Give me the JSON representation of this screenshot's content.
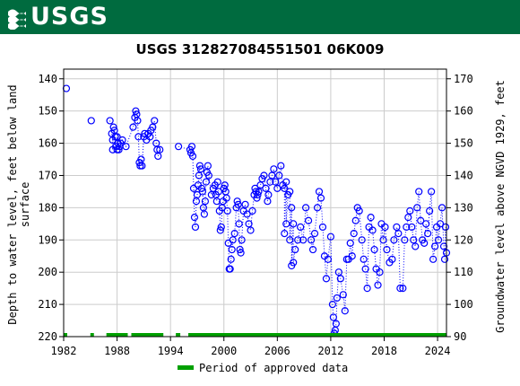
{
  "header": {
    "logo_text": "USGS",
    "logo_icon": "usgs-wave-icon",
    "banner_color": "#006b3f"
  },
  "chart_data": {
    "type": "scatter",
    "title": "USGS 312827084551501 06K009",
    "ylabel_left": "Depth to water level, feet below land surface",
    "ylabel_right": "Groundwater level above NGVD 1929, feet",
    "xlim": [
      1982,
      2025
    ],
    "ylim_left": [
      220,
      137
    ],
    "ylim_right": [
      90,
      173
    ],
    "x_ticks": [
      1982,
      1988,
      1994,
      2000,
      2006,
      2012,
      2018,
      2024
    ],
    "y_ticks_left": [
      140,
      150,
      160,
      170,
      180,
      190,
      200,
      210,
      220
    ],
    "y_ticks_right": [
      90,
      100,
      110,
      120,
      130,
      140,
      150,
      160,
      170
    ],
    "grid": true,
    "marker_color": "#0000ff",
    "approved_color": "#00a000",
    "legend": {
      "label": "Period of approved data",
      "placement": "bottom-center"
    },
    "approved_periods": [
      [
        1982.0,
        1982.4
      ],
      [
        1985.0,
        1985.4
      ],
      [
        1986.8,
        1989.2
      ],
      [
        1989.6,
        1993.2
      ],
      [
        1994.6,
        1995.1
      ],
      [
        1996.0,
        2025.0
      ]
    ],
    "series": [
      {
        "points": [
          [
            1982.3,
            143
          ],
          [
            1985.1,
            153
          ],
          [
            1987.2,
            153
          ],
          [
            1987.4,
            157
          ],
          [
            1987.5,
            159
          ],
          [
            1987.6,
            155
          ],
          [
            1987.7,
            156
          ],
          [
            1987.8,
            158
          ],
          [
            1987.9,
            161
          ],
          [
            1988.0,
            162
          ],
          [
            1988.1,
            160
          ],
          [
            1988.2,
            162
          ],
          [
            1988.3,
            161
          ],
          [
            1987.5,
            162
          ],
          [
            1988.0,
            158
          ],
          [
            1988.4,
            160
          ],
          [
            1988.6,
            159
          ],
          [
            1989.0,
            161
          ],
          [
            1989.8,
            155
          ],
          [
            1990.0,
            152
          ],
          [
            1990.1,
            150
          ],
          [
            1990.2,
            151
          ],
          [
            1990.3,
            153
          ],
          [
            1990.4,
            158
          ],
          [
            1990.5,
            166
          ],
          [
            1990.6,
            167
          ],
          [
            1990.7,
            165
          ],
          [
            1990.8,
            167
          ],
          [
            1991.0,
            158
          ],
          [
            1991.1,
            157
          ],
          [
            1991.3,
            159
          ],
          [
            1991.5,
            157
          ],
          [
            1991.7,
            158
          ],
          [
            1991.8,
            156
          ],
          [
            1992.0,
            155
          ],
          [
            1992.2,
            153
          ],
          [
            1992.4,
            160
          ],
          [
            1992.5,
            162
          ],
          [
            1992.6,
            164
          ],
          [
            1992.8,
            162
          ],
          [
            1994.9,
            161
          ],
          [
            1996.2,
            162
          ],
          [
            1996.3,
            163
          ],
          [
            1996.4,
            161
          ],
          [
            1996.5,
            164
          ],
          [
            1996.6,
            174
          ],
          [
            1996.7,
            183
          ],
          [
            1996.8,
            186
          ],
          [
            1996.9,
            178
          ],
          [
            1997.0,
            176
          ],
          [
            1997.1,
            173
          ],
          [
            1997.2,
            170
          ],
          [
            1997.3,
            167
          ],
          [
            1997.4,
            168
          ],
          [
            1997.5,
            174
          ],
          [
            1997.6,
            175
          ],
          [
            1997.7,
            180
          ],
          [
            1997.8,
            182
          ],
          [
            1997.9,
            178
          ],
          [
            1998.0,
            172
          ],
          [
            1998.1,
            169
          ],
          [
            1998.2,
            167
          ],
          [
            1998.3,
            170
          ],
          [
            1998.6,
            176
          ],
          [
            1998.8,
            174
          ],
          [
            1999.0,
            173
          ],
          [
            1999.1,
            176
          ],
          [
            1999.2,
            178
          ],
          [
            1999.3,
            172
          ],
          [
            1999.4,
            175
          ],
          [
            1999.5,
            181
          ],
          [
            1999.6,
            187
          ],
          [
            1999.7,
            186
          ],
          [
            1999.8,
            180
          ],
          [
            1999.9,
            178
          ],
          [
            2000.0,
            174
          ],
          [
            2000.1,
            173
          ],
          [
            2000.2,
            175
          ],
          [
            2000.3,
            177
          ],
          [
            2000.4,
            181
          ],
          [
            2000.5,
            191
          ],
          [
            2000.6,
            199
          ],
          [
            2000.7,
            199
          ],
          [
            2000.8,
            196
          ],
          [
            2000.9,
            193
          ],
          [
            2001.0,
            190
          ],
          [
            2001.2,
            188
          ],
          [
            2001.4,
            180
          ],
          [
            2001.5,
            178
          ],
          [
            2001.6,
            179
          ],
          [
            2001.7,
            185
          ],
          [
            2001.8,
            193
          ],
          [
            2001.9,
            194
          ],
          [
            2002.0,
            190
          ],
          [
            2002.2,
            181
          ],
          [
            2002.4,
            179
          ],
          [
            2002.6,
            182
          ],
          [
            2002.8,
            185
          ],
          [
            2003.0,
            187
          ],
          [
            2003.2,
            181
          ],
          [
            2003.4,
            176
          ],
          [
            2003.5,
            174
          ],
          [
            2003.6,
            175
          ],
          [
            2003.7,
            177
          ],
          [
            2003.8,
            176
          ],
          [
            2003.9,
            175
          ],
          [
            2004.1,
            173
          ],
          [
            2004.3,
            171
          ],
          [
            2004.5,
            170
          ],
          [
            2004.7,
            174
          ],
          [
            2004.9,
            178
          ],
          [
            2005.0,
            176
          ],
          [
            2005.2,
            172
          ],
          [
            2005.4,
            170
          ],
          [
            2005.6,
            168
          ],
          [
            2005.8,
            172
          ],
          [
            2006.0,
            174
          ],
          [
            2006.2,
            170
          ],
          [
            2006.4,
            167
          ],
          [
            2006.6,
            173
          ],
          [
            2006.8,
            174
          ],
          [
            2007.0,
            172
          ],
          [
            2007.2,
            176
          ],
          [
            2007.4,
            175
          ],
          [
            2007.6,
            180
          ],
          [
            2007.8,
            185
          ],
          [
            2006.8,
            188
          ],
          [
            2007.0,
            185
          ],
          [
            2007.4,
            190
          ],
          [
            2007.6,
            198
          ],
          [
            2007.8,
            197
          ],
          [
            2008.0,
            193
          ],
          [
            2008.3,
            190
          ],
          [
            2008.6,
            186
          ],
          [
            2008.9,
            190
          ],
          [
            2009.2,
            180
          ],
          [
            2009.5,
            184
          ],
          [
            2009.8,
            190
          ],
          [
            2010.0,
            193
          ],
          [
            2010.2,
            188
          ],
          [
            2010.5,
            180
          ],
          [
            2010.7,
            175
          ],
          [
            2010.9,
            177
          ],
          [
            2011.1,
            186
          ],
          [
            2011.3,
            195
          ],
          [
            2011.5,
            202
          ],
          [
            2011.7,
            196
          ],
          [
            2012.0,
            189
          ],
          [
            2012.2,
            210
          ],
          [
            2012.3,
            214
          ],
          [
            2012.4,
            219
          ],
          [
            2012.5,
            218
          ],
          [
            2012.6,
            216
          ],
          [
            2012.7,
            208
          ],
          [
            2012.9,
            200
          ],
          [
            2013.1,
            202
          ],
          [
            2013.4,
            207
          ],
          [
            2013.6,
            212
          ],
          [
            2013.8,
            196
          ],
          [
            2014.0,
            196
          ],
          [
            2014.2,
            191
          ],
          [
            2014.4,
            195
          ],
          [
            2014.6,
            188
          ],
          [
            2014.8,
            184
          ],
          [
            2015.0,
            180
          ],
          [
            2015.2,
            181
          ],
          [
            2015.5,
            190
          ],
          [
            2015.7,
            196
          ],
          [
            2015.9,
            199
          ],
          [
            2016.1,
            205
          ],
          [
            2016.3,
            186
          ],
          [
            2016.5,
            183
          ],
          [
            2016.7,
            187
          ],
          [
            2016.9,
            193
          ],
          [
            2017.1,
            199
          ],
          [
            2017.3,
            204
          ],
          [
            2017.5,
            200
          ],
          [
            2017.7,
            185
          ],
          [
            2017.9,
            190
          ],
          [
            2018.1,
            186
          ],
          [
            2018.3,
            193
          ],
          [
            2018.6,
            197
          ],
          [
            2018.9,
            196
          ],
          [
            2019.1,
            190
          ],
          [
            2019.4,
            186
          ],
          [
            2019.6,
            188
          ],
          [
            2019.8,
            205
          ],
          [
            2020.1,
            205
          ],
          [
            2020.3,
            190
          ],
          [
            2020.5,
            186
          ],
          [
            2020.7,
            183
          ],
          [
            2020.9,
            181
          ],
          [
            2021.1,
            186
          ],
          [
            2021.3,
            190
          ],
          [
            2021.5,
            192
          ],
          [
            2021.7,
            180
          ],
          [
            2021.9,
            175
          ],
          [
            2022.1,
            184
          ],
          [
            2022.3,
            190
          ],
          [
            2022.5,
            191
          ],
          [
            2022.7,
            185
          ],
          [
            2022.9,
            188
          ],
          [
            2023.1,
            181
          ],
          [
            2023.3,
            175
          ],
          [
            2023.5,
            196
          ],
          [
            2023.7,
            192
          ],
          [
            2023.9,
            186
          ],
          [
            2024.1,
            190
          ],
          [
            2024.3,
            185
          ],
          [
            2024.5,
            180
          ],
          [
            2024.7,
            192
          ],
          [
            2024.8,
            196
          ],
          [
            2024.9,
            186
          ],
          [
            2025.0,
            194
          ]
        ]
      }
    ]
  }
}
